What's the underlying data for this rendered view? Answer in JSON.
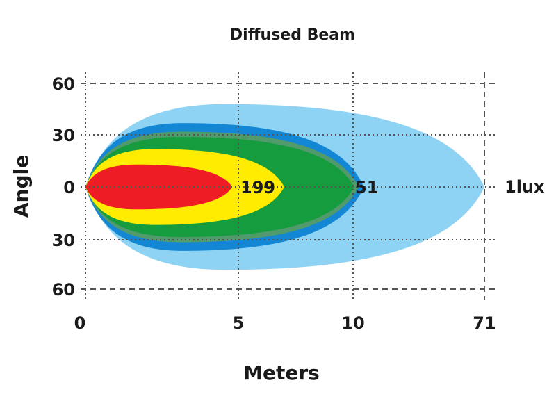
{
  "chart_data": {
    "type": "area",
    "title": "Diffused Beam",
    "xlabel": "Meters",
    "ylabel": "Angle",
    "x_ticks": [
      "0",
      "5",
      "10",
      "71"
    ],
    "y_ticks": [
      "60",
      "30",
      "0",
      "30",
      "60"
    ],
    "series": [
      {
        "name": "1lux",
        "color": "#8ed3f3",
        "reach": 71,
        "half_width": 48
      },
      {
        "color": "#1487d4",
        "reach": 15,
        "half_width": 37
      },
      {
        "color": "#509a6c",
        "reach": 12.5,
        "half_width": 32
      },
      {
        "color": "#149c3e",
        "reach": 10.5,
        "half_width": 29
      },
      {
        "color": "#ffec00",
        "reach": 7,
        "half_width": 22
      },
      {
        "color": "#ee1c25",
        "reach": 4.8,
        "half_width": 13
      }
    ],
    "annotations": [
      {
        "text": "199",
        "x": 5
      },
      {
        "text": "51",
        "x": 10
      }
    ],
    "grid": true
  }
}
